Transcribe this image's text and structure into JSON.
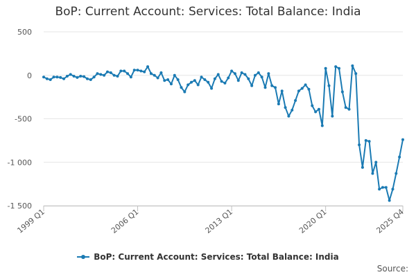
{
  "chart_data": {
    "type": "line",
    "title": "BoP: Current Account: Services: Total Balance: India",
    "xlabel": "",
    "ylabel": "",
    "ylim": [
      -1500,
      500
    ],
    "yticks": [
      500,
      0,
      -500,
      -1000,
      -1500
    ],
    "ytick_labels": [
      "500",
      "0",
      "-500",
      "-1 000",
      "-1 500"
    ],
    "x_start": "1999 Q1",
    "x_end": "2025 Q4",
    "xtick_labels": [
      "1999 Q1",
      "2006 Q1",
      "2013 Q1",
      "2020 Q1",
      "2025 Q4"
    ],
    "grid": true,
    "legend_position": "bottom",
    "series": [
      {
        "name": "BoP: Current Account: Services: Total Balance: India",
        "color": "#1a7ab3",
        "values": [
          -20,
          -40,
          -50,
          -20,
          -20,
          -25,
          -40,
          -10,
          10,
          -10,
          -25,
          -10,
          -15,
          -40,
          -50,
          -20,
          20,
          10,
          0,
          40,
          30,
          0,
          -10,
          50,
          50,
          20,
          -20,
          60,
          60,
          50,
          40,
          100,
          20,
          0,
          -30,
          30,
          -60,
          -50,
          -100,
          0,
          -50,
          -140,
          -190,
          -110,
          -80,
          -60,
          -110,
          -20,
          -50,
          -80,
          -150,
          -40,
          10,
          -70,
          -90,
          -30,
          50,
          20,
          -60,
          30,
          10,
          -40,
          -120,
          0,
          30,
          -20,
          -140,
          20,
          -120,
          -140,
          -330,
          -180,
          -370,
          -470,
          -400,
          -290,
          -180,
          -150,
          -110,
          -160,
          -350,
          -420,
          -390,
          -580,
          80,
          -120,
          -470,
          100,
          80,
          -190,
          -370,
          -390,
          110,
          20,
          -800,
          -1060,
          -750,
          -760,
          -1130,
          -1000,
          -1310,
          -1290,
          -1290,
          -1440,
          -1310,
          -1130,
          -940,
          -740
        ]
      }
    ],
    "legend_label": "BoP: Current Account: Services: Total Balance: India",
    "source_label": "Source:"
  }
}
